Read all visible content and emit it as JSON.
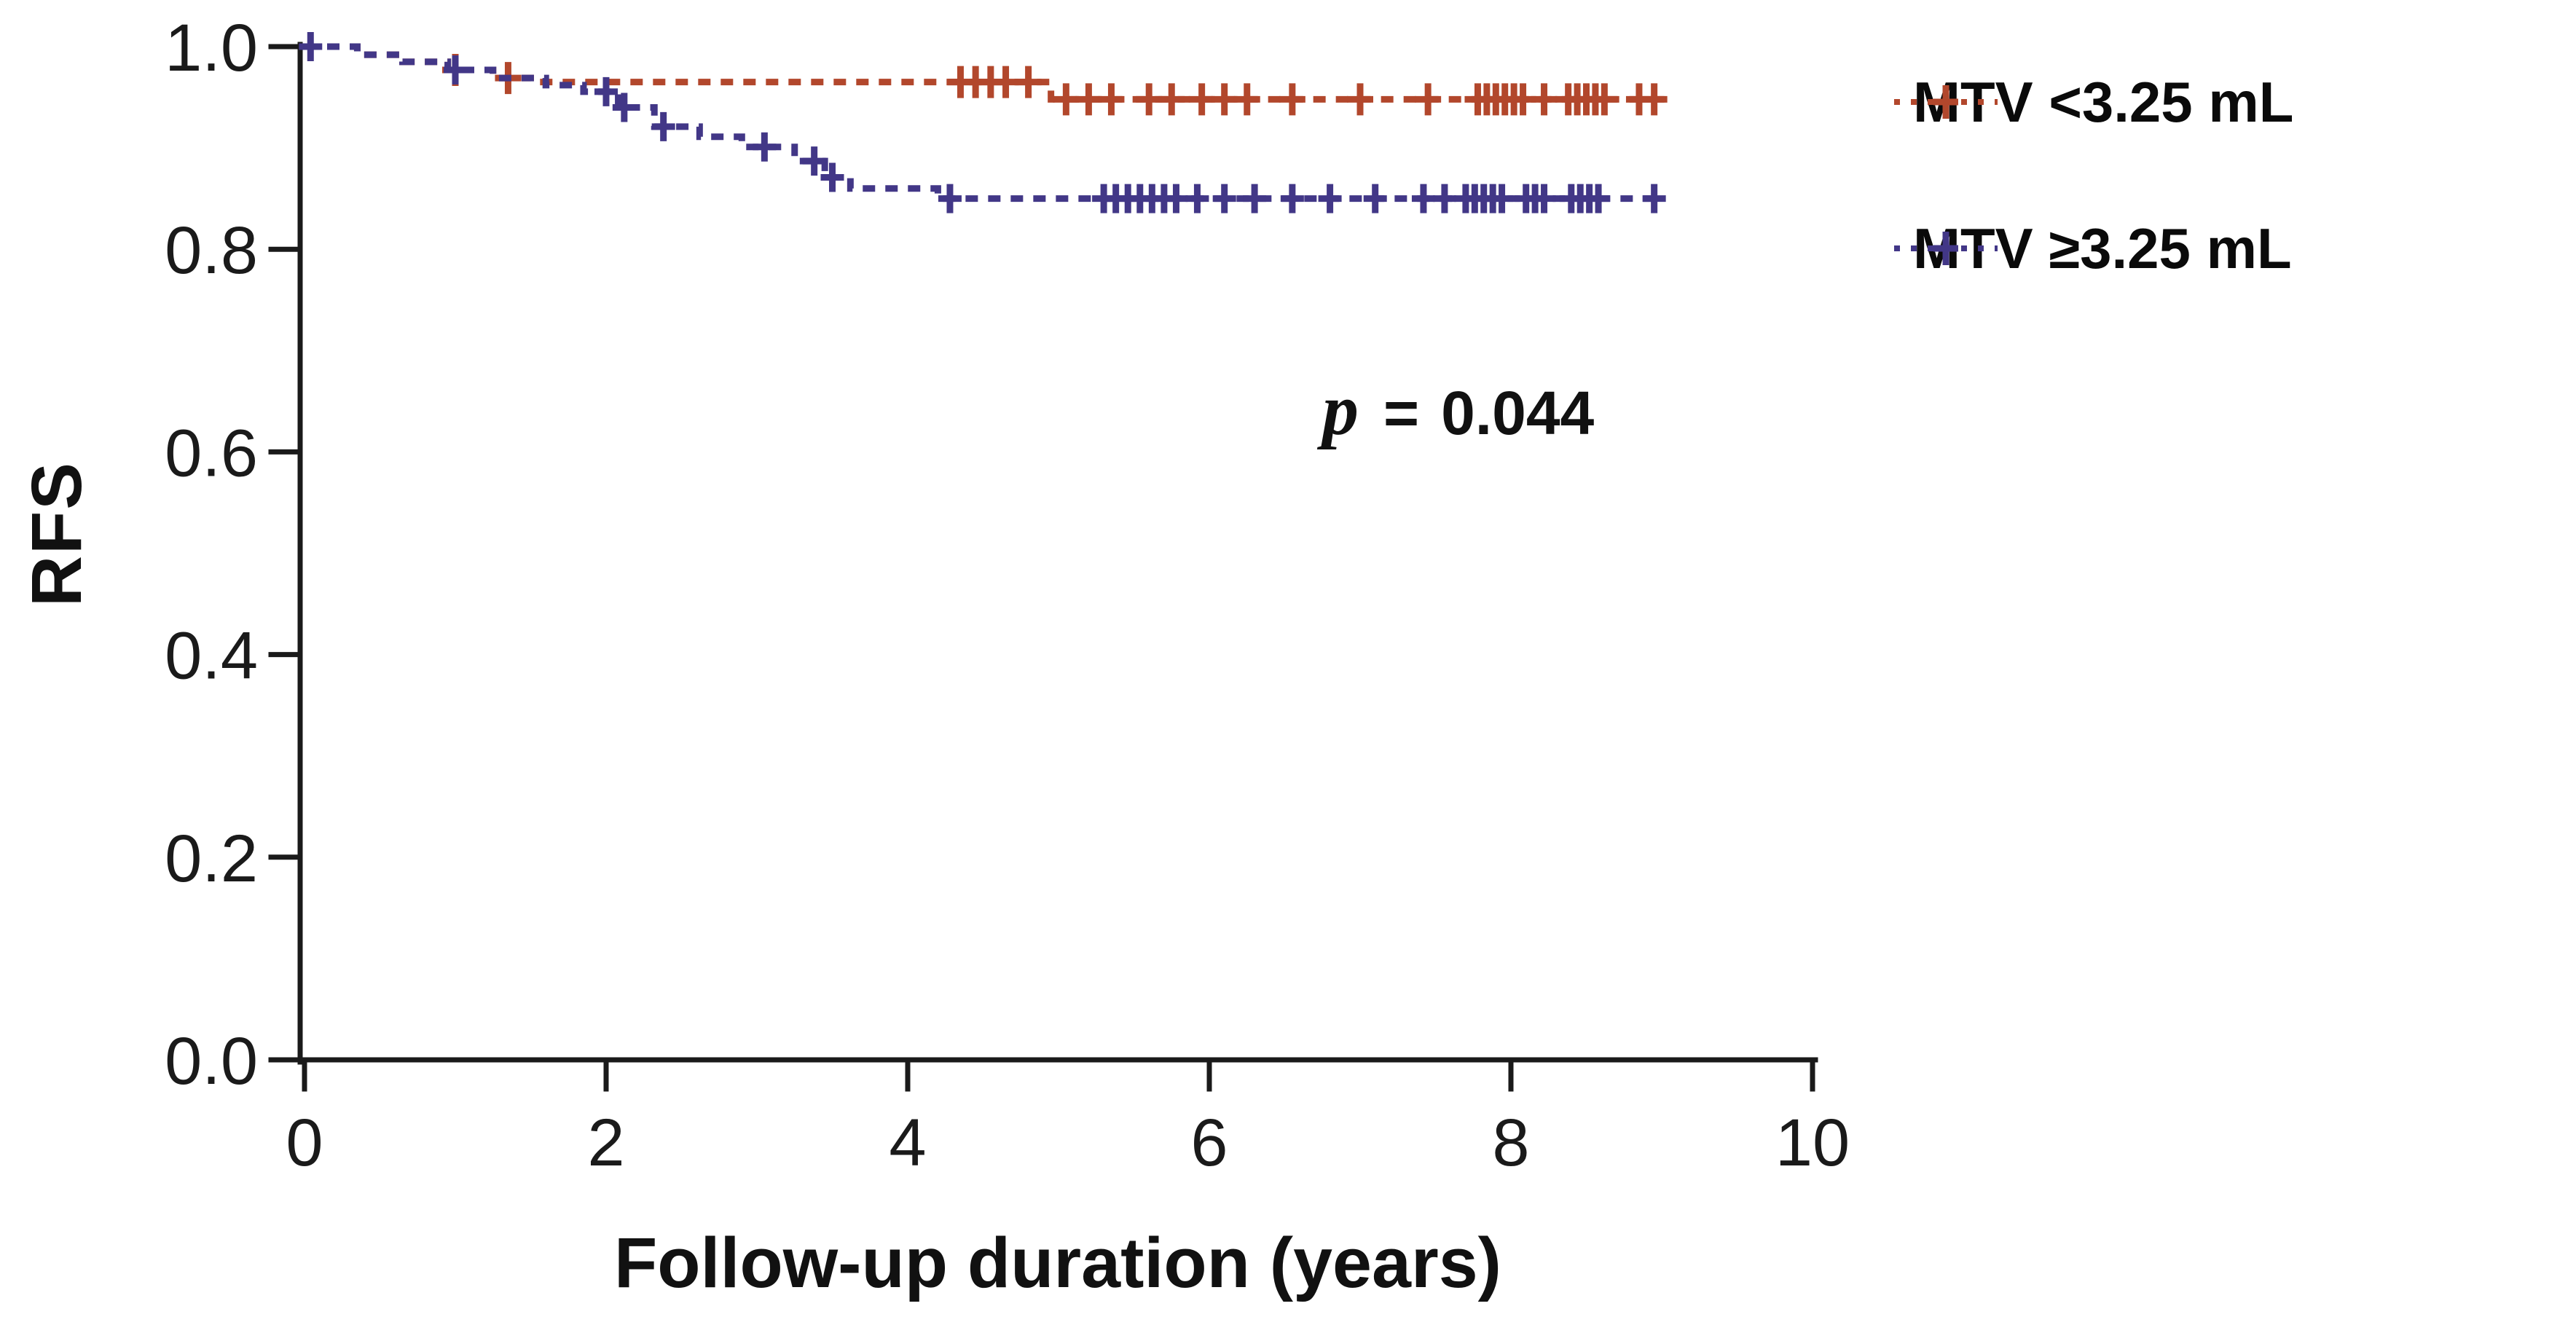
{
  "chart_data": {
    "type": "line",
    "subtype": "kaplan-meier-step",
    "title": "",
    "xlabel": "Follow-up duration (years)",
    "ylabel": "RFS",
    "xlim": [
      0,
      10
    ],
    "ylim": [
      0.0,
      1.0
    ],
    "x_tick_values": [
      0,
      2,
      4,
      6,
      8,
      10
    ],
    "x_tick_labels": [
      "0",
      "2",
      "4",
      "6",
      "8",
      "10"
    ],
    "y_tick_values": [
      1.0,
      0.8,
      0.6,
      0.4,
      0.2,
      0.0
    ],
    "y_tick_labels": [
      "1.0",
      "0.8",
      "0.6",
      "0.4",
      "0.2",
      "0.0"
    ],
    "grid": false,
    "legend_position": "top-right-outside",
    "axis_color": "#1a1a1a",
    "annotation": {
      "symbol": "p",
      "equals": "=",
      "value": "0.044"
    },
    "series": [
      {
        "name": "MTV <3.25 mL",
        "color": "#b2472c",
        "line_style": "dashed",
        "marker": "plus",
        "steps": [
          [
            0,
            1.0
          ],
          [
            0.35,
            0.992
          ],
          [
            0.65,
            0.985
          ],
          [
            0.95,
            0.977
          ],
          [
            1.25,
            0.969
          ],
          [
            1.5,
            0.965
          ],
          [
            4.95,
            0.948
          ],
          [
            9.05,
            0.948
          ]
        ],
        "censor_times": [
          1.0,
          1.35,
          4.35,
          4.45,
          4.55,
          4.65,
          4.8,
          5.05,
          5.2,
          5.35,
          5.6,
          5.75,
          5.95,
          6.1,
          6.25,
          6.55,
          7.0,
          7.45,
          7.78,
          7.84,
          7.9,
          7.96,
          8.02,
          8.08,
          8.22,
          8.38,
          8.44,
          8.5,
          8.56,
          8.62,
          8.85,
          8.95
        ]
      },
      {
        "name": "MTV ≥3.25 mL",
        "color": "#423787",
        "line_style": "dashed",
        "marker": "plus",
        "steps": [
          [
            0,
            1.0
          ],
          [
            0.35,
            0.992
          ],
          [
            0.65,
            0.985
          ],
          [
            0.95,
            0.977
          ],
          [
            1.25,
            0.969
          ],
          [
            1.6,
            0.962
          ],
          [
            1.85,
            0.9555
          ],
          [
            2.08,
            0.94
          ],
          [
            2.32,
            0.921
          ],
          [
            2.62,
            0.911
          ],
          [
            2.9,
            0.901
          ],
          [
            3.25,
            0.887
          ],
          [
            3.45,
            0.871
          ],
          [
            3.62,
            0.86
          ],
          [
            4.2,
            0.85
          ],
          [
            9.0,
            0.85
          ]
        ],
        "censor_times": [
          0.04,
          1.0,
          2.0,
          2.12,
          2.38,
          3.05,
          3.38,
          3.5,
          4.28,
          5.3,
          5.38,
          5.46,
          5.54,
          5.62,
          5.7,
          5.78,
          5.92,
          6.1,
          6.3,
          6.55,
          6.8,
          7.1,
          7.42,
          7.56,
          7.7,
          7.76,
          7.82,
          7.88,
          7.94,
          8.1,
          8.16,
          8.22,
          8.4,
          8.46,
          8.52,
          8.58,
          8.95
        ]
      }
    ]
  }
}
